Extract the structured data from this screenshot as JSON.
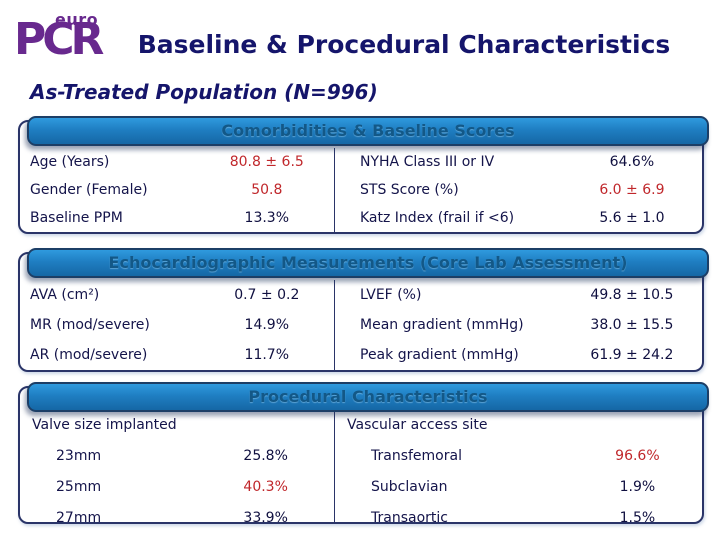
{
  "logo": {
    "top_text": "euro",
    "main_text": "PCR"
  },
  "title": "Baseline & Procedural Characteristics",
  "subtitle": "As-Treated Population (N=996)",
  "colors": {
    "logo_purple": "#68298e",
    "heading_navy": "#15156b",
    "bar_blue": "#1f7ec2",
    "bar_text_blue": "#135887",
    "value_red": "#c0272b",
    "text_navy": "#14144a"
  },
  "sections": [
    {
      "header": "Comorbidities & Baseline Scores",
      "left_rows": [
        {
          "label": "Age (Years)",
          "value": "80.8 ± 6.5"
        },
        {
          "label": "Gender (Female)",
          "value": "50.8"
        },
        {
          "label": "Baseline PPM",
          "value": "13.3%"
        }
      ],
      "right_rows": [
        {
          "label": "NYHA Class III or IV",
          "value": "64.6%"
        },
        {
          "label": "STS Score (%)",
          "value": "6.0 ± 6.9"
        },
        {
          "label": "Katz Index (frail if <6)",
          "value": "5.6 ± 1.0"
        }
      ]
    },
    {
      "header": "Echocardiographic Measurements (Core Lab Assessment)",
      "left_rows": [
        {
          "label": "AVA (cm²)",
          "value": "0.7 ± 0.2"
        },
        {
          "label": "MR (mod/severe)",
          "value": "14.9%"
        },
        {
          "label": "AR (mod/severe)",
          "value": "11.7%"
        }
      ],
      "right_rows": [
        {
          "label": "LVEF (%)",
          "value": "49.8 ± 10.5"
        },
        {
          "label": "Mean gradient (mmHg)",
          "value": "38.0 ± 15.5"
        },
        {
          "label": "Peak gradient (mmHg)",
          "value": "61.9 ± 24.2"
        }
      ]
    },
    {
      "header": "Procedural Characteristics",
      "left_group": "Valve size implanted",
      "left_rows": [
        {
          "label": "23mm",
          "value": "25.8%"
        },
        {
          "label": "25mm",
          "value": "40.3%"
        },
        {
          "label": "27mm",
          "value": "33.9%"
        }
      ],
      "right_group": "Vascular access site",
      "right_rows": [
        {
          "label": "Transfemoral",
          "value": "96.6%"
        },
        {
          "label": "Subclavian",
          "value": "1.9%"
        },
        {
          "label": "Transaortic",
          "value": "1.5%"
        }
      ]
    }
  ]
}
